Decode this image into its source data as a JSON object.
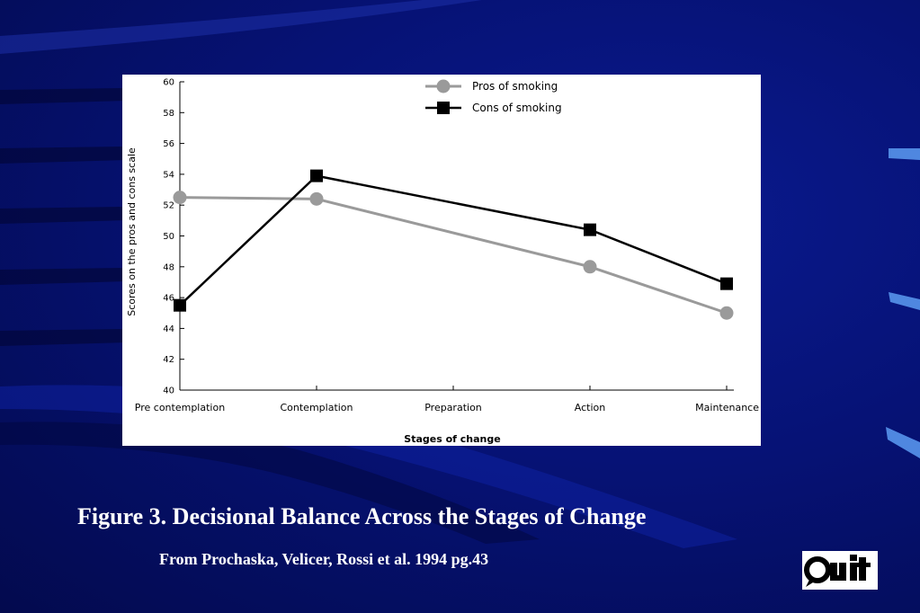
{
  "slide": {
    "title": "Figure 3. Decisional Balance Across the Stages of Change",
    "source": "From Prochaska, Velicer, Rossi et al. 1994 pg.43",
    "logo_text": "Quit"
  },
  "colors": {
    "background": "#061275",
    "pros_series": "#9a9a9a",
    "cons_series": "#000000"
  },
  "chart_data": {
    "type": "line",
    "title": "",
    "xlabel": "Stages of change",
    "ylabel": "Scores on the pros and cons scale",
    "ylim": [
      40,
      60
    ],
    "yticks": [
      40,
      42,
      44,
      46,
      48,
      50,
      52,
      54,
      56,
      58,
      60
    ],
    "categories": [
      "Pre contemplation",
      "Contemplation",
      "Preparation",
      "Action",
      "Maintenance"
    ],
    "legend_position": "top-center",
    "grid": false,
    "series": [
      {
        "name": "Pros of smoking",
        "marker": "circle",
        "values": [
          52.5,
          52.4,
          null,
          48.0,
          45.0
        ]
      },
      {
        "name": "Cons of smoking",
        "marker": "square",
        "values": [
          45.5,
          53.9,
          null,
          50.4,
          46.9
        ]
      }
    ]
  }
}
